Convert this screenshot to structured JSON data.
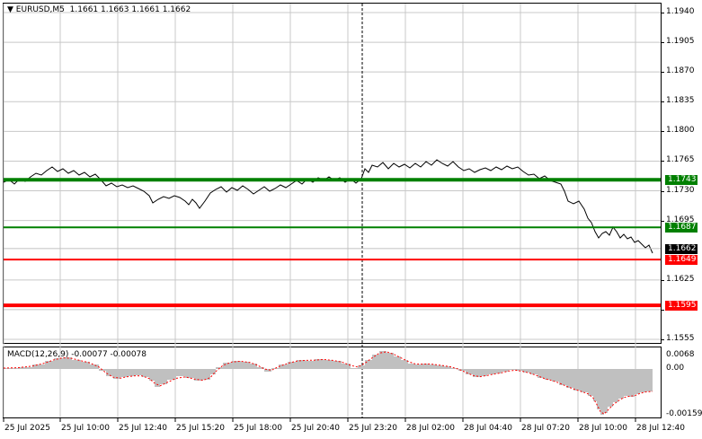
{
  "header": {
    "menu_glyph": "▼",
    "symbol": "EURUSD,M5",
    "ohlc": "1.1661 1.1663 1.1661 1.1662"
  },
  "price_axis": {
    "labels": [
      "1.1940",
      "1.1905",
      "1.1870",
      "1.1835",
      "1.1800",
      "1.1765",
      "1.1730",
      "1.1695",
      "1.1625",
      "1.1590",
      "1.1555"
    ]
  },
  "levels": [
    {
      "name": "resistance-1743",
      "label": "1.1743",
      "color": "#008000",
      "price": 1.1743
    },
    {
      "name": "level-1687",
      "label": "1.1687",
      "color": "#008000",
      "price": 1.1687
    },
    {
      "name": "current-price",
      "label": "1.1662",
      "color": "#000000",
      "price": 1.1662
    },
    {
      "name": "level-1649",
      "label": "1.1649",
      "color": "#ff0000",
      "price": 1.1649
    },
    {
      "name": "support-1595",
      "label": "1.1595",
      "color": "#ff0000",
      "price": 1.1595
    }
  ],
  "macd": {
    "title": "MACD(12,26,9) -0.00077 -0.00078",
    "axis_labels": [
      "0.0068",
      "0.00",
      "-0.00159"
    ],
    "colors": {
      "histogram": "#c0c0c0",
      "signal": "#ff0000"
    }
  },
  "time_axis": {
    "labels": [
      "25 Jul 2025",
      "25 Jul 10:00",
      "25 Jul 12:40",
      "25 Jul 15:20",
      "25 Jul 18:00",
      "25 Jul 20:40",
      "25 Jul 23:20",
      "28 Jul 02:00",
      "28 Jul 04:40",
      "28 Jul 07:20",
      "28 Jul 10:00",
      "28 Jul 12:40"
    ]
  },
  "colors": {
    "price_line": "#000000",
    "grid": "#c8c8c8",
    "separator": "#000000"
  },
  "chart_data": {
    "type": "line",
    "x": [
      "25 Jul 2025",
      "25 Jul 10:00",
      "25 Jul 12:40",
      "25 Jul 15:20",
      "25 Jul 18:00",
      "25 Jul 20:40",
      "25 Jul 23:20",
      "28 Jul 02:00",
      "28 Jul 04:40",
      "28 Jul 07:20",
      "28 Jul 10:00",
      "28 Jul 12:40"
    ],
    "series": [
      {
        "name": "EURUSD,M5",
        "values": [
          1.174,
          1.1742,
          1.1735,
          1.1722,
          1.173,
          1.1744,
          1.1752,
          1.1758,
          1.1755,
          1.1745,
          1.1688,
          1.1662
        ]
      }
    ],
    "macd": {
      "histogram": [
        0.0002,
        0.0004,
        -0.0002,
        0.0001,
        0.0003,
        0.0004,
        0.0003,
        0.0006,
        0.0002,
        -0.0003,
        -0.0012,
        -0.0008
      ],
      "signal": [
        0.0001,
        0.0003,
        -0.0001,
        0.0,
        0.0002,
        0.0004,
        0.0002,
        0.0005,
        0.0001,
        -0.0002,
        -0.001,
        -0.00078
      ]
    },
    "ylim": [
      1.155,
      1.195
    ]
  }
}
